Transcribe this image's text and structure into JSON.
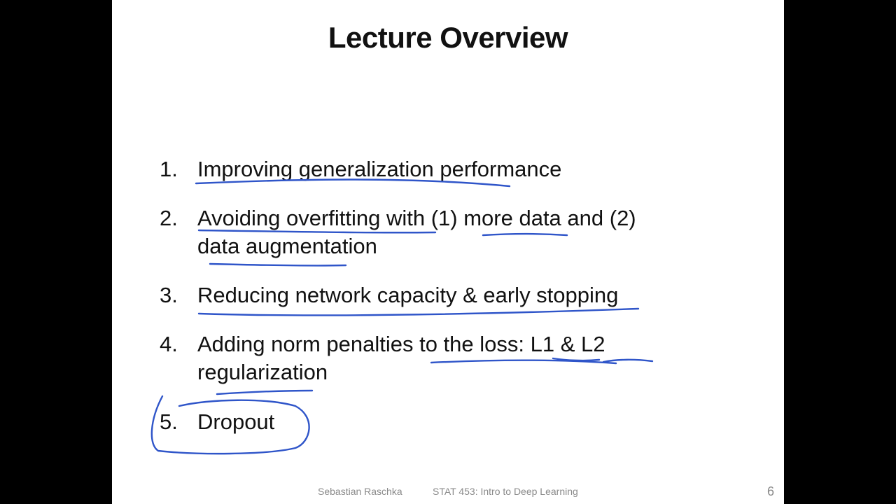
{
  "slide": {
    "title": "Lecture Overview",
    "items": [
      {
        "number": "1.",
        "text": "Improving generalization performance"
      },
      {
        "number": "2.",
        "line1": "Avoiding overfitting with (1) more data and (2)",
        "line2": "data augmentation"
      },
      {
        "number": "3.",
        "text": "Reducing network capacity & early stopping"
      },
      {
        "number": "4.",
        "line1": "Adding norm penalties to the loss: L1 & L2",
        "line2": "regularization"
      },
      {
        "number": "5.",
        "text": "Dropout"
      }
    ],
    "footer": {
      "author": "Sebastian Raschka",
      "course": "STAT 453: Intro to Deep Learning",
      "page": "6"
    }
  },
  "colors": {
    "background": "#000000",
    "slide": "#ffffff",
    "text": "#111111",
    "footer_text": "#8a8a8a",
    "annotation_ink": "#2f55c9"
  }
}
